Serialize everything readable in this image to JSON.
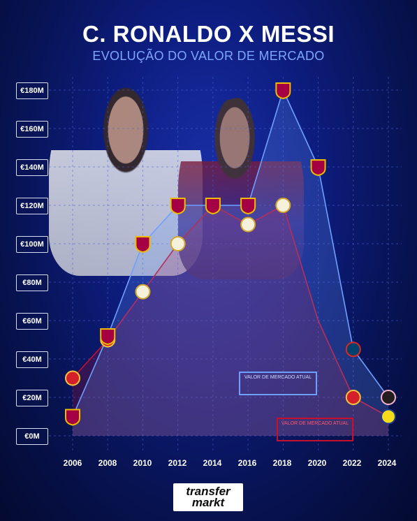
{
  "title": "C. RONALDO X MESSI",
  "subtitle": "EVOLUÇÃO DO VALOR DE MERCADO",
  "legend": {
    "ronaldo_label": "VALOR DE MERCADO ATUAL",
    "messi_label": "VALOR DE MERCADO ATUAL"
  },
  "brand": {
    "line1": "transfer",
    "line2": "markt"
  },
  "colors": {
    "ronaldo": "#c8102e",
    "messi": "#6da0ff",
    "background": "#0d1d80"
  },
  "chart_data": {
    "type": "line",
    "title": "C. RONALDO X MESSI",
    "subtitle": "EVOLUÇÃO DO VALOR DE MERCADO",
    "x": [
      2006,
      2008,
      2010,
      2012,
      2014,
      2016,
      2018,
      2020,
      2022,
      2024
    ],
    "x_tick_labels": [
      "2006",
      "2008",
      "2010",
      "2012",
      "2014",
      "2016",
      "2018",
      "2020",
      "2022",
      "2024"
    ],
    "y_tick_labels": [
      "€0M",
      "€20M",
      "€40M",
      "€60M",
      "€80M",
      "€100M",
      "€120M",
      "€140M",
      "€160M",
      "€180M"
    ],
    "ylim": [
      0,
      180
    ],
    "series": [
      {
        "values": [
          30,
          50,
          75,
          100,
          120,
          110,
          120,
          60,
          20,
          10
        ],
        "club_icons": [
          "man-utd-icon",
          "man-utd-icon",
          "real-madrid-icon",
          "real-madrid-icon",
          "real-madrid-icon",
          "real-madrid-icon",
          "real-madrid-icon",
          "juventus-icon",
          "man-utd-icon",
          "al-nassr-icon"
        ]
      },
      {
        "values": [
          10,
          52,
          100,
          120,
          120,
          120,
          180,
          140,
          45,
          20
        ],
        "club_icons": [
          "barcelona-icon",
          "barcelona-icon",
          "barcelona-icon",
          "barcelona-icon",
          "barcelona-icon",
          "barcelona-icon",
          "barcelona-icon",
          "barcelona-icon",
          "psg-icon",
          "inter-miami-icon"
        ]
      }
    ]
  }
}
